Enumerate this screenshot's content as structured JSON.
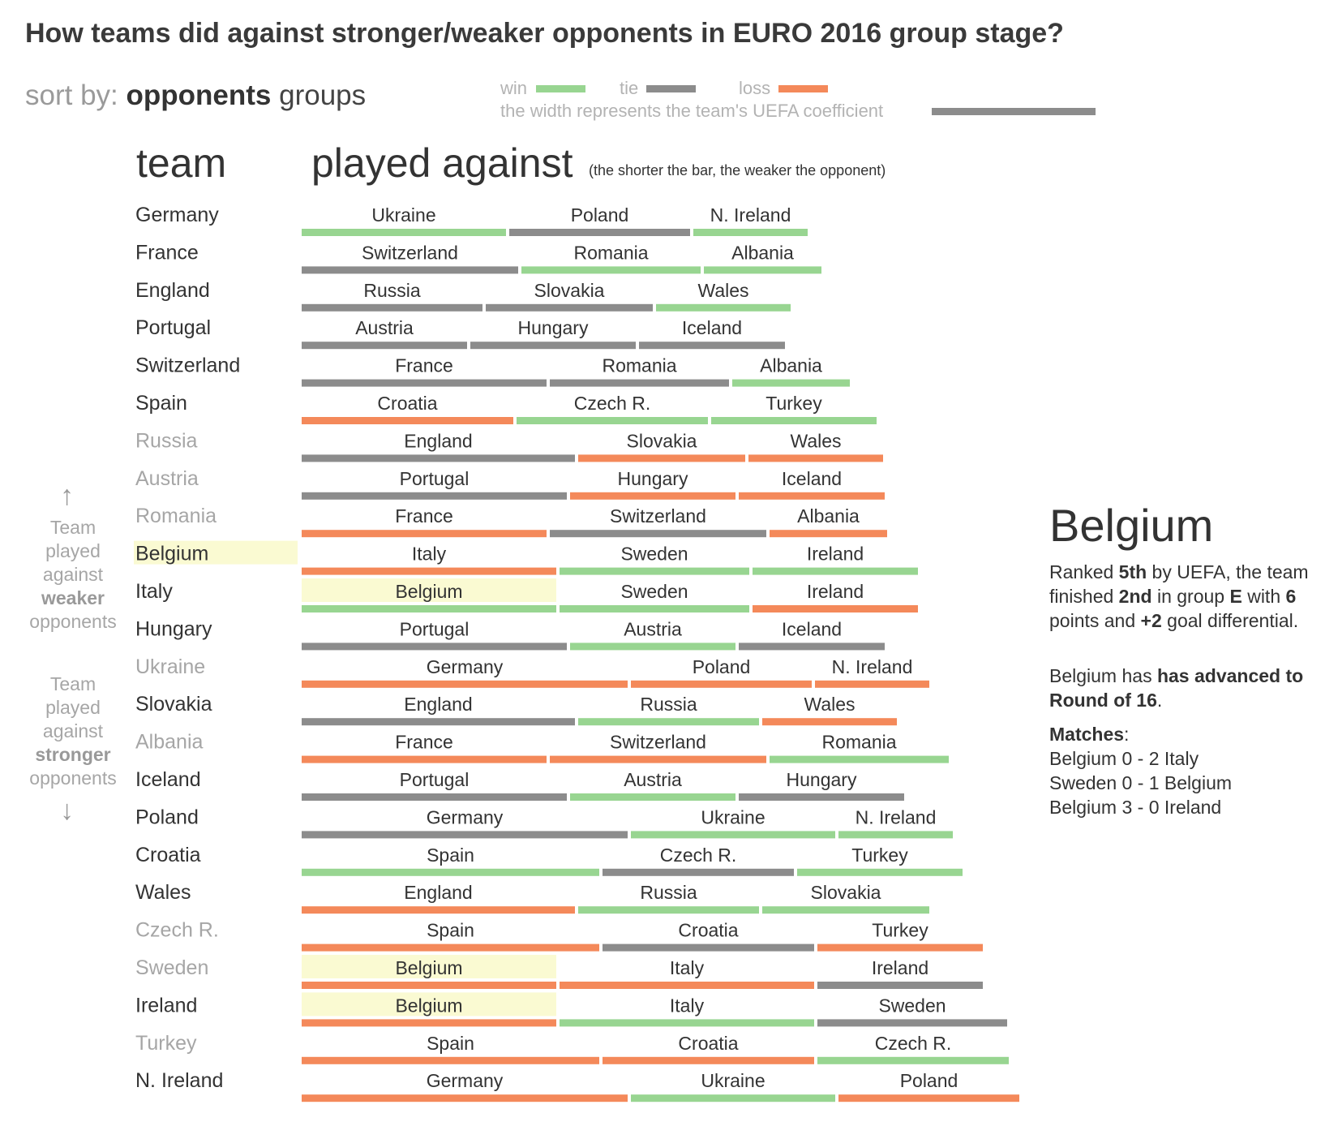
{
  "title": "How teams did against stronger/weaker opponents in EURO 2016 group stage?",
  "sort": {
    "label": "sort by:",
    "selected": "opponents",
    "other": "groups"
  },
  "legend": {
    "win": "win",
    "tie": "tie",
    "loss": "loss",
    "width_note": "the width represents the team's UEFA coefficient",
    "colors": {
      "win": "#98d591",
      "tie": "#8c8c8c",
      "loss": "#f4895a"
    }
  },
  "headers": {
    "team": "team",
    "played": "played against",
    "note": "(the shorter the bar, the weaker the opponent)"
  },
  "side": {
    "up_arrow": "↑",
    "down_arrow": "↓",
    "weaker": [
      "Team",
      "played",
      "against",
      "weaker",
      "opponents"
    ],
    "stronger": [
      "Team",
      "played",
      "against",
      "stronger",
      "opponents"
    ]
  },
  "detail": {
    "team": "Belgium",
    "p1": [
      "Ranked ",
      "5th",
      " by UEFA, the team finished ",
      "2nd",
      " in group ",
      "E",
      " with ",
      "6",
      " points and ",
      "+2",
      " goal differential."
    ],
    "p2": [
      "Belgium has ",
      "has advanced to Round of 16",
      "."
    ],
    "matches_label": "Matches",
    "matches": [
      "Belgium 0 - 2 Italy",
      "Sweden 0 - 1 Belgium",
      "Belgium 3 - 0 Ireland"
    ]
  },
  "chart_data": {
    "type": "bar",
    "highlight": "Belgium",
    "rows": [
      {
        "team": "Germany",
        "advanced": true,
        "matches": [
          [
            "Ukraine",
            "win"
          ],
          [
            "Poland",
            "tie"
          ],
          [
            "N. Ireland",
            "win"
          ]
        ]
      },
      {
        "team": "France",
        "advanced": true,
        "matches": [
          [
            "Switzerland",
            "tie"
          ],
          [
            "Romania",
            "win"
          ],
          [
            "Albania",
            "win"
          ]
        ]
      },
      {
        "team": "England",
        "advanced": true,
        "matches": [
          [
            "Russia",
            "tie"
          ],
          [
            "Slovakia",
            "tie"
          ],
          [
            "Wales",
            "win"
          ]
        ]
      },
      {
        "team": "Portugal",
        "advanced": true,
        "matches": [
          [
            "Austria",
            "tie"
          ],
          [
            "Hungary",
            "tie"
          ],
          [
            "Iceland",
            "tie"
          ]
        ]
      },
      {
        "team": "Switzerland",
        "advanced": true,
        "matches": [
          [
            "France",
            "tie"
          ],
          [
            "Romania",
            "tie"
          ],
          [
            "Albania",
            "win"
          ]
        ]
      },
      {
        "team": "Spain",
        "advanced": true,
        "matches": [
          [
            "Croatia",
            "loss"
          ],
          [
            "Czech R.",
            "win"
          ],
          [
            "Turkey",
            "win"
          ]
        ]
      },
      {
        "team": "Russia",
        "advanced": false,
        "matches": [
          [
            "England",
            "tie"
          ],
          [
            "Slovakia",
            "loss"
          ],
          [
            "Wales",
            "loss"
          ]
        ]
      },
      {
        "team": "Austria",
        "advanced": false,
        "matches": [
          [
            "Portugal",
            "tie"
          ],
          [
            "Hungary",
            "loss"
          ],
          [
            "Iceland",
            "loss"
          ]
        ]
      },
      {
        "team": "Romania",
        "advanced": false,
        "matches": [
          [
            "France",
            "loss"
          ],
          [
            "Switzerland",
            "tie"
          ],
          [
            "Albania",
            "loss"
          ]
        ]
      },
      {
        "team": "Belgium",
        "advanced": true,
        "matches": [
          [
            "Italy",
            "loss"
          ],
          [
            "Sweden",
            "win"
          ],
          [
            "Ireland",
            "win"
          ]
        ]
      },
      {
        "team": "Italy",
        "advanced": true,
        "matches": [
          [
            "Belgium",
            "win"
          ],
          [
            "Sweden",
            "win"
          ],
          [
            "Ireland",
            "loss"
          ]
        ]
      },
      {
        "team": "Hungary",
        "advanced": true,
        "matches": [
          [
            "Portugal",
            "tie"
          ],
          [
            "Austria",
            "win"
          ],
          [
            "Iceland",
            "tie"
          ]
        ]
      },
      {
        "team": "Ukraine",
        "advanced": false,
        "matches": [
          [
            "Germany",
            "loss"
          ],
          [
            "Poland",
            "loss"
          ],
          [
            "N. Ireland",
            "loss"
          ]
        ]
      },
      {
        "team": "Slovakia",
        "advanced": true,
        "matches": [
          [
            "England",
            "tie"
          ],
          [
            "Russia",
            "win"
          ],
          [
            "Wales",
            "loss"
          ]
        ]
      },
      {
        "team": "Albania",
        "advanced": false,
        "matches": [
          [
            "France",
            "loss"
          ],
          [
            "Switzerland",
            "loss"
          ],
          [
            "Romania",
            "win"
          ]
        ]
      },
      {
        "team": "Iceland",
        "advanced": true,
        "matches": [
          [
            "Portugal",
            "tie"
          ],
          [
            "Austria",
            "win"
          ],
          [
            "Hungary",
            "tie"
          ]
        ]
      },
      {
        "team": "Poland",
        "advanced": true,
        "matches": [
          [
            "Germany",
            "tie"
          ],
          [
            "Ukraine",
            "win"
          ],
          [
            "N. Ireland",
            "win"
          ]
        ]
      },
      {
        "team": "Croatia",
        "advanced": true,
        "matches": [
          [
            "Spain",
            "win"
          ],
          [
            "Czech R.",
            "tie"
          ],
          [
            "Turkey",
            "win"
          ]
        ]
      },
      {
        "team": "Wales",
        "advanced": true,
        "matches": [
          [
            "England",
            "loss"
          ],
          [
            "Russia",
            "win"
          ],
          [
            "Slovakia",
            "win"
          ]
        ]
      },
      {
        "team": "Czech R.",
        "advanced": false,
        "matches": [
          [
            "Spain",
            "loss"
          ],
          [
            "Croatia",
            "tie"
          ],
          [
            "Turkey",
            "loss"
          ]
        ]
      },
      {
        "team": "Sweden",
        "advanced": false,
        "matches": [
          [
            "Belgium",
            "loss"
          ],
          [
            "Italy",
            "loss"
          ],
          [
            "Ireland",
            "tie"
          ]
        ]
      },
      {
        "team": "Ireland",
        "advanced": true,
        "matches": [
          [
            "Belgium",
            "loss"
          ],
          [
            "Italy",
            "win"
          ],
          [
            "Sweden",
            "tie"
          ]
        ]
      },
      {
        "team": "Turkey",
        "advanced": false,
        "matches": [
          [
            "Spain",
            "loss"
          ],
          [
            "Croatia",
            "loss"
          ],
          [
            "Czech R.",
            "win"
          ]
        ]
      },
      {
        "team": "N. Ireland",
        "advanced": true,
        "matches": [
          [
            "Germany",
            "loss"
          ],
          [
            "Ukraine",
            "win"
          ],
          [
            "Poland",
            "loss"
          ]
        ]
      }
    ]
  }
}
